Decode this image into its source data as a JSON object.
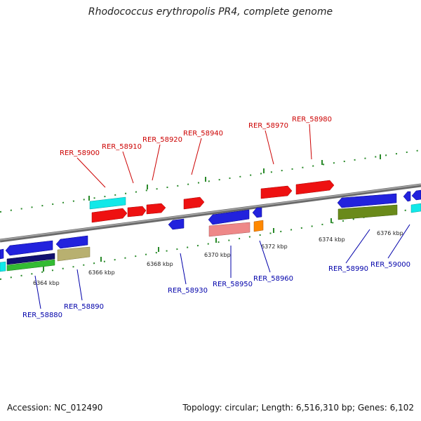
{
  "title": "Rhodococcus erythropolis PR4, complete genome",
  "footer": {
    "accession": "Accession: NC_012490",
    "summary": "Topology: circular; Length: 6,516,310 bp; Genes: 6,102"
  },
  "colors": {
    "forward_label": "#cc0000",
    "reverse_label": "#0000aa",
    "backbone": "#888888",
    "tick": "#2a8a2a",
    "forward_gene": "#ee1111",
    "reverse_gene": "#2222dd",
    "cyan_gene": "#11dddd",
    "pink_gene": "#ee8888",
    "orange_gene": "#ff8800",
    "olive_gene": "#6a8a1a",
    "khaki_gene": "#b8b070",
    "navy_gene": "#101070",
    "green_gene": "#33bb33"
  },
  "scale": [
    "6364 kbp",
    "6366 kbp",
    "6368 kbp",
    "6370 kbp",
    "6372 kbp",
    "6374 kbp",
    "6376 kbp"
  ],
  "forward_genes": [
    "RER_58900",
    "RER_58910",
    "RER_58920",
    "RER_58940",
    "RER_58970",
    "RER_58980"
  ],
  "reverse_genes": [
    "RER_58880",
    "RER_58890",
    "RER_58930",
    "RER_58950",
    "RER_58960",
    "RER_58990",
    "RER_59000"
  ]
}
